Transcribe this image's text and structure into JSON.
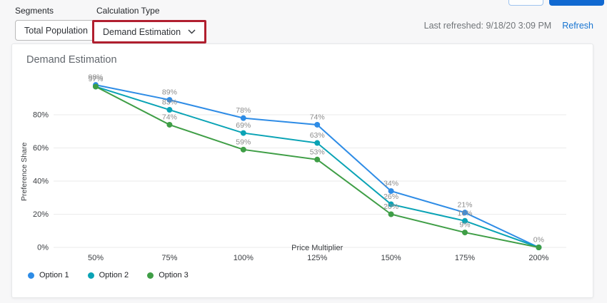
{
  "controls": {
    "segments": {
      "label": "Segments",
      "value": "Total Population"
    },
    "calculation_type": {
      "label": "Calculation Type",
      "value": "Demand Estimation"
    }
  },
  "topbar": {
    "last_refreshed": "Last refreshed: 9/18/20 3:09 PM",
    "refresh_label": "Refresh"
  },
  "chart_data": {
    "type": "line",
    "title": "Demand Estimation",
    "xlabel": "Price Multiplier",
    "ylabel": "Preference Share",
    "x_tick_labels": [
      "50%",
      "75%",
      "100%",
      "125%",
      "150%",
      "175%",
      "200%"
    ],
    "y_ticks": [
      0,
      20,
      40,
      60,
      80
    ],
    "y_tick_labels": [
      "0%",
      "20%",
      "40%",
      "60%",
      "80%"
    ],
    "ylim": [
      0,
      100
    ],
    "grid": true,
    "point_labels": true,
    "legend_position": "bottom-left",
    "series": [
      {
        "name": "Option 1",
        "color": "#2e8ce6",
        "values": [
          98,
          89,
          78,
          74,
          34,
          21,
          0
        ]
      },
      {
        "name": "Option 2",
        "color": "#0aa3b5",
        "values": [
          97,
          83,
          69,
          63,
          26,
          16,
          0
        ]
      },
      {
        "name": "Option 3",
        "color": "#3f9e46",
        "values": [
          97,
          74,
          59,
          53,
          20,
          9,
          0
        ]
      }
    ]
  },
  "colors": {
    "annotation_red": "#b11f2f",
    "link_blue": "#1774d1",
    "primary_button_blue": "#1169d1",
    "grid_line": "#ebebeb",
    "point_label_gray": "#8c8c8c",
    "axis_text": "#3a3d41"
  }
}
